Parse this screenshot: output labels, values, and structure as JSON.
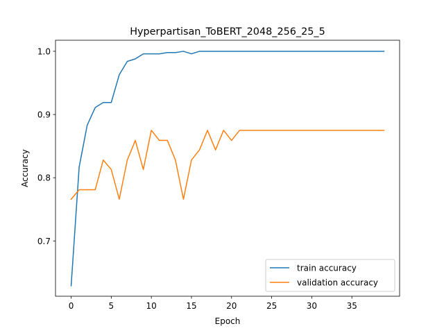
{
  "chart_data": {
    "type": "line",
    "title": "Hyperpartisan_ToBERT_2048_256_25_5",
    "xlabel": "Epoch",
    "ylabel": "Accuracy",
    "xlim": [
      -1.95,
      40.95
    ],
    "ylim": [
      0.6125,
      1.0175
    ],
    "xticks": [
      0,
      5,
      10,
      15,
      20,
      25,
      30,
      35
    ],
    "yticks": [
      0.7,
      0.8,
      0.9,
      1.0
    ],
    "ytick_labels": [
      "0.7",
      "0.8",
      "0.9",
      "1.0"
    ],
    "grid": false,
    "legend_position": "lower right",
    "x": [
      0,
      1,
      2,
      3,
      4,
      5,
      6,
      7,
      8,
      9,
      10,
      11,
      12,
      13,
      14,
      15,
      16,
      17,
      18,
      19,
      20,
      21,
      22,
      23,
      24,
      25,
      26,
      27,
      28,
      29,
      30,
      31,
      32,
      33,
      34,
      35,
      36,
      37,
      38,
      39
    ],
    "series": [
      {
        "name": "train accuracy",
        "color": "#1f77b4",
        "values": [
          0.629,
          0.817,
          0.883,
          0.911,
          0.919,
          0.919,
          0.963,
          0.984,
          0.988,
          0.996,
          0.996,
          0.996,
          0.998,
          0.998,
          1.0,
          0.996,
          1.0,
          1.0,
          1.0,
          1.0,
          1.0,
          1.0,
          1.0,
          1.0,
          1.0,
          1.0,
          1.0,
          1.0,
          1.0,
          1.0,
          1.0,
          1.0,
          1.0,
          1.0,
          1.0,
          1.0,
          1.0,
          1.0,
          1.0,
          1.0
        ]
      },
      {
        "name": "validation accuracy",
        "color": "#ff7f0e",
        "values": [
          0.766,
          0.781,
          0.781,
          0.781,
          0.828,
          0.813,
          0.766,
          0.828,
          0.859,
          0.813,
          0.875,
          0.859,
          0.859,
          0.828,
          0.766,
          0.828,
          0.844,
          0.875,
          0.844,
          0.875,
          0.859,
          0.875,
          0.875,
          0.875,
          0.875,
          0.875,
          0.875,
          0.875,
          0.875,
          0.875,
          0.875,
          0.875,
          0.875,
          0.875,
          0.875,
          0.875,
          0.875,
          0.875,
          0.875,
          0.875
        ]
      }
    ]
  }
}
